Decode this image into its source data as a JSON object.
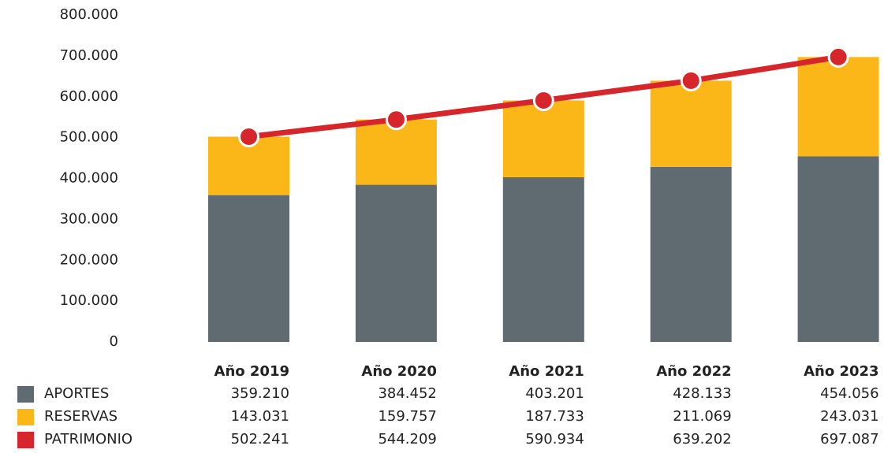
{
  "chart_data": {
    "type": "bar",
    "stacked": true,
    "categories": [
      "Año 2019",
      "Año 2020",
      "Año 2021",
      "Año 2022",
      "Año 2023"
    ],
    "series": [
      {
        "name": "APORTES",
        "color": "#5f6b70",
        "type": "bar",
        "values": [
          359210,
          384452,
          403201,
          428133,
          454056
        ],
        "value_labels": [
          "359.210",
          "384.452",
          "403.201",
          "428.133",
          "454.056"
        ]
      },
      {
        "name": "RESERVAS",
        "color": "#fbb718",
        "type": "bar",
        "values": [
          143031,
          159757,
          187733,
          211069,
          243031
        ],
        "value_labels": [
          "143.031",
          "159.757",
          "187.733",
          "211.069",
          "243.031"
        ]
      },
      {
        "name": "PATRIMONIO",
        "color": "#d6262b",
        "type": "line",
        "values": [
          502241,
          544209,
          590934,
          639202,
          697087
        ],
        "value_labels": [
          "502.241",
          "544.209",
          "590.934",
          "639.202",
          "697.087"
        ]
      }
    ],
    "ylim": [
      0,
      800000
    ],
    "yticks": [
      0,
      {
        "value": 100000,
        "label": "100.000"
      },
      {
        "value": 200000,
        "label": "200.000"
      },
      {
        "value": 300000,
        "label": "300.000"
      },
      {
        "value": 400000,
        "label": "400.000"
      },
      {
        "value": 500000,
        "label": "500.000"
      },
      {
        "value": 600000,
        "label": "600.000"
      },
      {
        "value": 700000,
        "label": "700.000"
      },
      {
        "value": 800000,
        "label": "800.000"
      }
    ],
    "grid": false
  }
}
